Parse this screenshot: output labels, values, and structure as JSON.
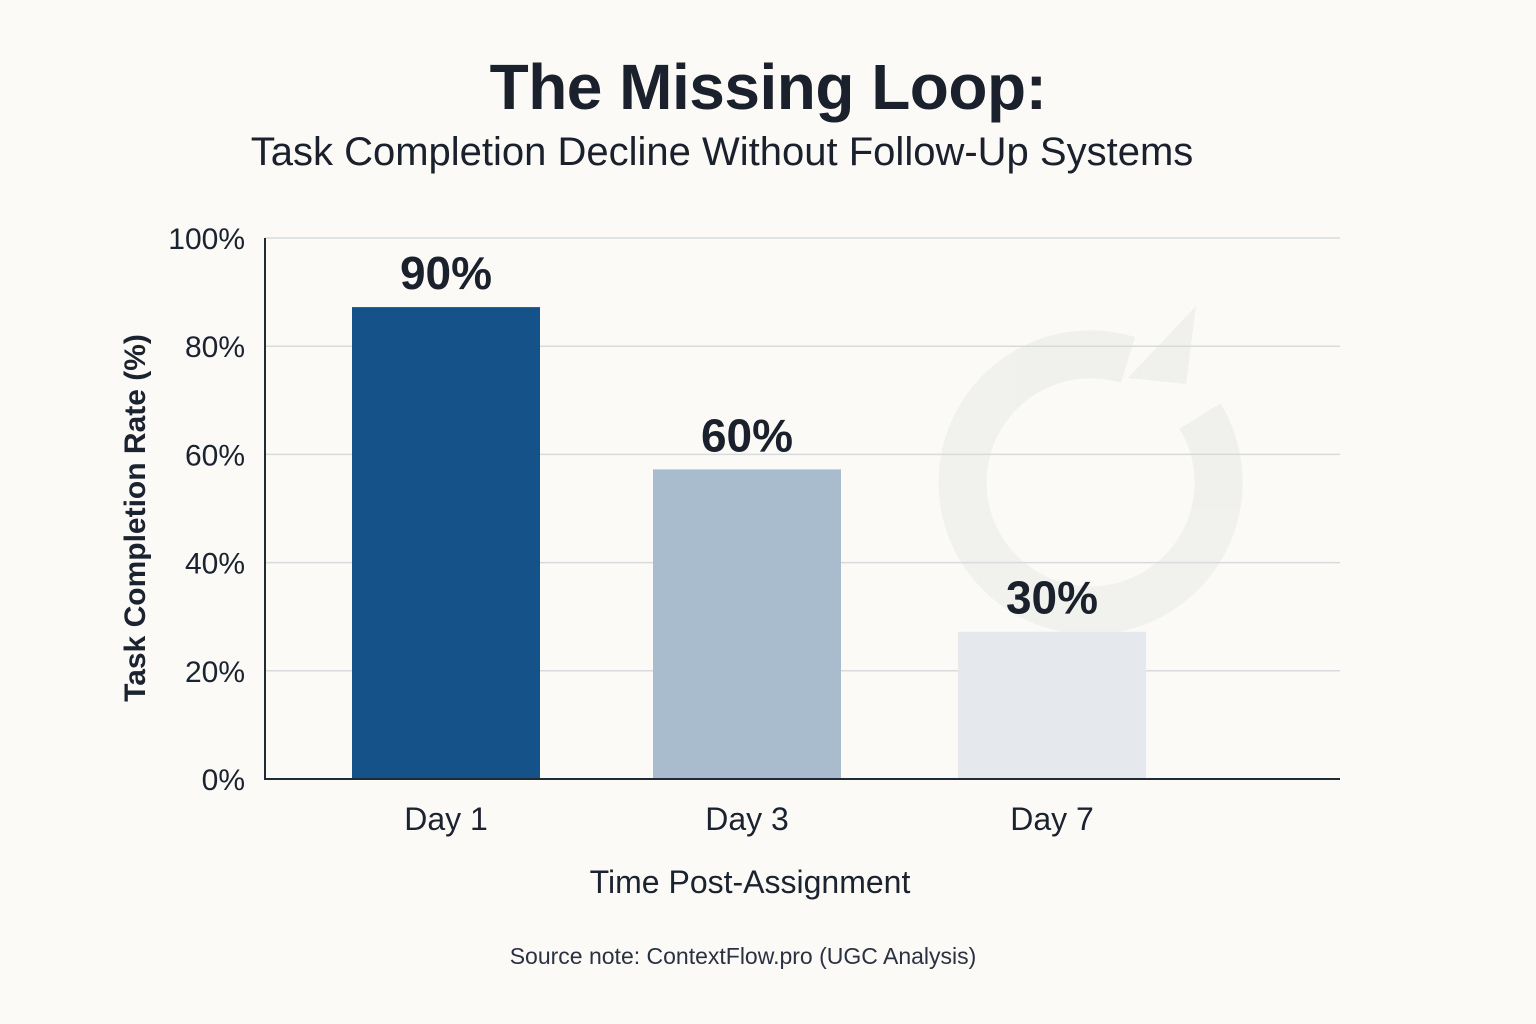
{
  "chart_data": {
    "type": "bar",
    "title": "The Missing Loop:",
    "subtitle": "Task Completion Decline Without Follow-Up Systems",
    "categories": [
      "Day 1",
      "Day 3",
      "Day 7"
    ],
    "values": [
      90,
      60,
      30
    ],
    "bar_labels": [
      "90%",
      "60%",
      "30%"
    ],
    "bar_colors": [
      "#16528a",
      "#a8bccd",
      "#e5e9ee"
    ],
    "xlabel": "Time Post-Assignment",
    "ylabel": "Task Completion Rate (%)",
    "ylim": [
      0,
      100
    ],
    "yticks": [
      0,
      20,
      40,
      60,
      80,
      100
    ],
    "ytick_labels": [
      "0%",
      "20%",
      "40%",
      "60%",
      "80%",
      "100%"
    ],
    "grid": true,
    "legend": "none",
    "background_icon": "refresh-loop-icon",
    "source_note": "Source note: ContextFlow.pro (UGC Analysis)"
  }
}
